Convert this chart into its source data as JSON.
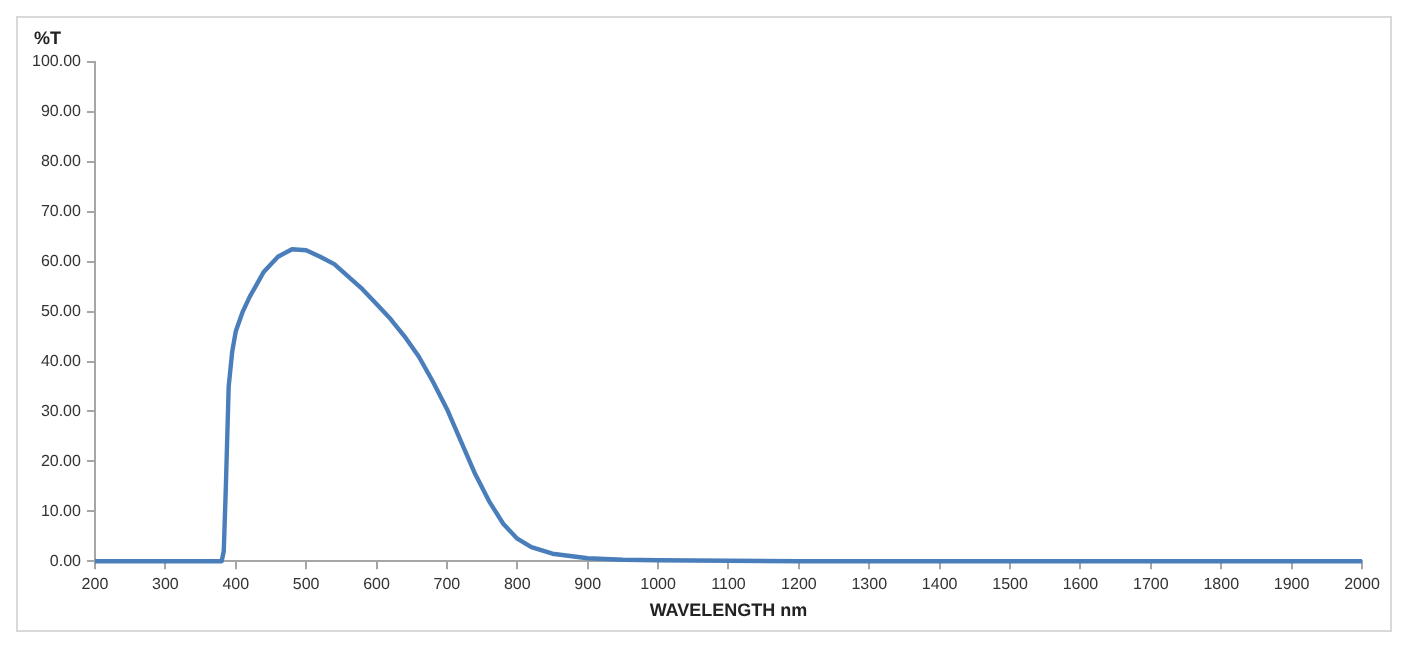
{
  "chart_data": {
    "type": "line",
    "ylabel": "%T",
    "xlabel": "WAVELENGTH nm",
    "x": [
      200,
      300,
      380,
      383,
      386,
      390,
      395,
      400,
      410,
      420,
      440,
      460,
      480,
      500,
      520,
      540,
      560,
      580,
      600,
      620,
      640,
      660,
      680,
      700,
      720,
      740,
      760,
      780,
      800,
      820,
      850,
      900,
      950,
      1000,
      1100,
      1200,
      1500,
      2000
    ],
    "series": [
      {
        "color": "#4a7ebb",
        "values": [
          0,
          0,
          0,
          2,
          15,
          35,
          42,
          46,
          50,
          53,
          58,
          61,
          62.5,
          62.3,
          61,
          59.5,
          57,
          54.5,
          51.5,
          48.5,
          45,
          41,
          36,
          30.5,
          24,
          17.5,
          12,
          7.5,
          4.5,
          2.8,
          1.5,
          0.6,
          0.3,
          0.2,
          0.1,
          0,
          0,
          0
        ]
      }
    ],
    "xlim": [
      200,
      2000
    ],
    "xticks": [
      200,
      300,
      400,
      500,
      600,
      700,
      800,
      900,
      1000,
      1100,
      1200,
      1300,
      1400,
      1500,
      1600,
      1700,
      1800,
      1900,
      2000
    ],
    "ylim": [
      0,
      100
    ],
    "yticks": [
      {
        "value": 0,
        "label": "0.00"
      },
      {
        "value": 10,
        "label": "10.00"
      },
      {
        "value": 20,
        "label": "20.00"
      },
      {
        "value": 30,
        "label": "30.00"
      },
      {
        "value": 40,
        "label": "40.00"
      },
      {
        "value": 50,
        "label": "50.00"
      },
      {
        "value": 60,
        "label": "60.00"
      },
      {
        "value": 70,
        "label": "70.00"
      },
      {
        "value": 80,
        "label": "80.00"
      },
      {
        "value": 90,
        "label": "90.00"
      },
      {
        "value": 100,
        "label": "100.00"
      }
    ],
    "grid": false,
    "legend": false,
    "marker": "none",
    "line_style": "solid"
  }
}
